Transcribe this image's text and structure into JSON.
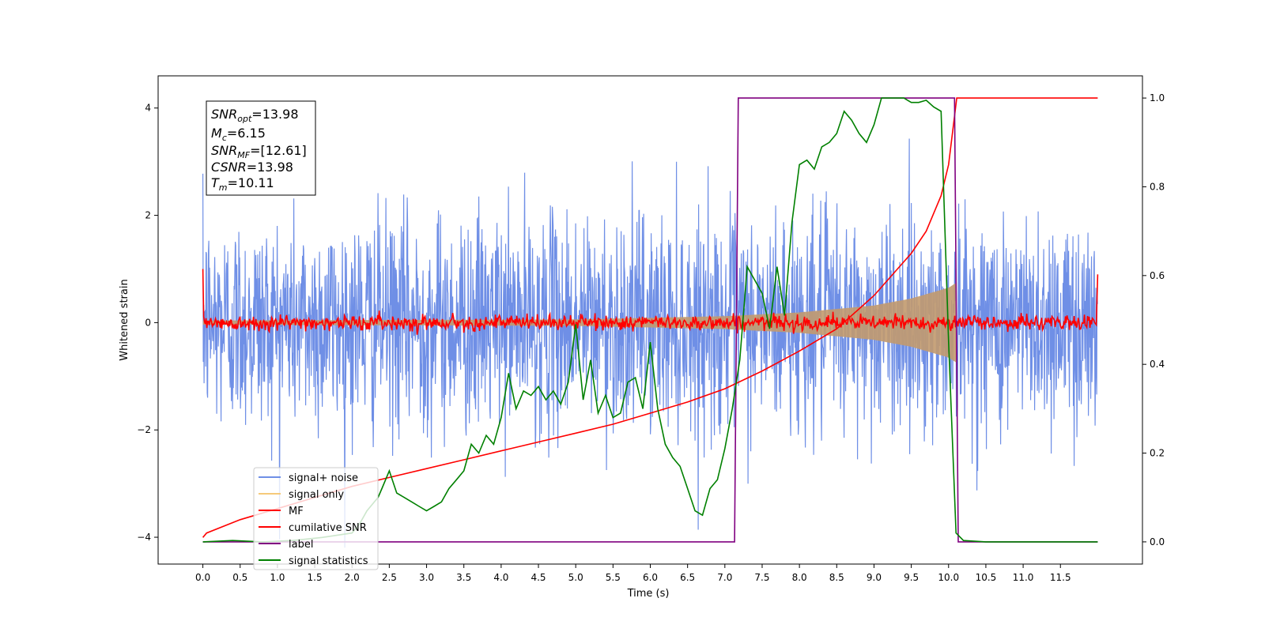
{
  "chart_data": {
    "type": "line",
    "title": "",
    "xlabel": "Time (s)",
    "ylabel": "Whitened strain",
    "xlim": [
      -0.6,
      12.6
    ],
    "ylim": [
      -4.5,
      4.6
    ],
    "ylim_right": [
      -0.05,
      1.05
    ],
    "x_ticks": [
      "0.0",
      "0.5",
      "1.0",
      "1.5",
      "2.0",
      "2.5",
      "3.0",
      "3.5",
      "4.0",
      "4.5",
      "5.0",
      "5.5",
      "6.0",
      "6.5",
      "7.0",
      "7.5",
      "8.0",
      "8.5",
      "9.0",
      "9.5",
      "10.0",
      "10.5",
      "11.0",
      "11.5"
    ],
    "y_ticks_left": [
      "4",
      "2",
      "0",
      "−2",
      "−4"
    ],
    "y_ticks_right": [
      "1.0",
      "0.8",
      "0.6",
      "0.4",
      "0.2",
      "0.0"
    ],
    "legend_position": "lower-left",
    "annotation": {
      "snr_opt": {
        "base": "SNR",
        "sub": "opt",
        "value": "=13.98"
      },
      "mc": {
        "base": "M",
        "sub": "c",
        "value": "=6.15"
      },
      "snr_mf": {
        "base": "SNR",
        "sub": "MF",
        "value": "=[12.61]"
      },
      "csnr": {
        "base": "CSNR",
        "sub": "",
        "value": "=13.98"
      },
      "tm": {
        "base": "T",
        "sub": "m",
        "value": "=10.11"
      }
    },
    "series": [
      {
        "name": "signal+ noise",
        "color": "#6f8fe6",
        "axis": "left",
        "kind": "noise",
        "t_start": 0.0,
        "t_end": 12.0,
        "sigma": 1.0,
        "peak": 4.2
      },
      {
        "name": "signal only",
        "color": "#f5c97a",
        "axis": "left",
        "kind": "chirp_envelope",
        "t_start": 0.0,
        "t_end": 10.11,
        "envelope_t": [
          0,
          5,
          7,
          8,
          9,
          9.5,
          10.0,
          10.11
        ],
        "envelope_a": [
          0.04,
          0.06,
          0.12,
          0.19,
          0.32,
          0.45,
          0.65,
          0.75
        ]
      },
      {
        "name": "MF",
        "color": "#ff0000",
        "axis": "left",
        "kind": "mf",
        "t_start": 0.0,
        "t_end": 12.0,
        "start_value": 1.0,
        "end_value": 0.9,
        "noise_amp": 0.07
      },
      {
        "name": "cumilative SNR",
        "color": "#ff0000",
        "axis": "right",
        "t": [
          0,
          0.05,
          0.5,
          1.0,
          1.5,
          2.0,
          2.5,
          3.0,
          3.5,
          4.0,
          4.5,
          5.0,
          5.5,
          6.0,
          6.5,
          7.0,
          7.5,
          8.0,
          8.5,
          9.0,
          9.5,
          9.7,
          9.9,
          10.0,
          10.11,
          12.0
        ],
        "v": [
          0.01,
          0.02,
          0.05,
          0.075,
          0.1,
          0.125,
          0.145,
          0.165,
          0.185,
          0.205,
          0.225,
          0.245,
          0.265,
          0.29,
          0.315,
          0.345,
          0.385,
          0.43,
          0.48,
          0.555,
          0.65,
          0.7,
          0.78,
          0.85,
          1.0,
          1.0
        ]
      },
      {
        "name": "label",
        "color": "#800080",
        "axis": "right",
        "t": [
          0.0,
          7.13,
          7.18,
          10.08,
          10.13,
          12.0
        ],
        "v": [
          0.0,
          0.0,
          1.0,
          1.0,
          0.0,
          0.0
        ]
      },
      {
        "name": "signal statistics",
        "color": "#008000",
        "axis": "right",
        "t": [
          0.0,
          0.4,
          0.8,
          1.2,
          1.6,
          2.0,
          2.1,
          2.2,
          2.3,
          2.35,
          2.4,
          2.5,
          2.6,
          2.7,
          2.8,
          2.9,
          3.0,
          3.1,
          3.2,
          3.3,
          3.4,
          3.5,
          3.6,
          3.7,
          3.8,
          3.9,
          4.0,
          4.1,
          4.2,
          4.3,
          4.4,
          4.5,
          4.6,
          4.7,
          4.8,
          4.9,
          5.0,
          5.1,
          5.2,
          5.3,
          5.4,
          5.5,
          5.6,
          5.7,
          5.8,
          5.9,
          6.0,
          6.1,
          6.2,
          6.3,
          6.4,
          6.5,
          6.6,
          6.7,
          6.8,
          6.9,
          7.0,
          7.1,
          7.2,
          7.3,
          7.4,
          7.5,
          7.6,
          7.7,
          7.8,
          7.9,
          8.0,
          8.1,
          8.2,
          8.3,
          8.4,
          8.5,
          8.6,
          8.7,
          8.8,
          8.9,
          9.0,
          9.1,
          9.2,
          9.3,
          9.4,
          9.5,
          9.6,
          9.7,
          9.8,
          9.9,
          10.0,
          10.1,
          10.2,
          10.5,
          11.0,
          11.5,
          12.0
        ],
        "v": [
          0.0,
          0.003,
          0.0,
          0.003,
          0.01,
          0.02,
          0.04,
          0.07,
          0.09,
          0.1,
          0.12,
          0.16,
          0.11,
          0.1,
          0.09,
          0.08,
          0.07,
          0.08,
          0.09,
          0.12,
          0.14,
          0.16,
          0.22,
          0.2,
          0.24,
          0.22,
          0.28,
          0.38,
          0.3,
          0.34,
          0.33,
          0.35,
          0.32,
          0.34,
          0.31,
          0.36,
          0.49,
          0.32,
          0.41,
          0.29,
          0.33,
          0.28,
          0.29,
          0.36,
          0.37,
          0.3,
          0.45,
          0.3,
          0.22,
          0.19,
          0.17,
          0.12,
          0.07,
          0.06,
          0.12,
          0.14,
          0.21,
          0.3,
          0.41,
          0.62,
          0.59,
          0.56,
          0.48,
          0.62,
          0.51,
          0.72,
          0.85,
          0.86,
          0.84,
          0.89,
          0.9,
          0.92,
          0.97,
          0.95,
          0.92,
          0.9,
          0.94,
          1.0,
          1.0,
          1.0,
          1.0,
          0.99,
          0.99,
          0.995,
          0.98,
          0.97,
          0.45,
          0.02,
          0.003,
          0.0,
          0.0,
          0.0,
          0.0
        ]
      }
    ]
  }
}
